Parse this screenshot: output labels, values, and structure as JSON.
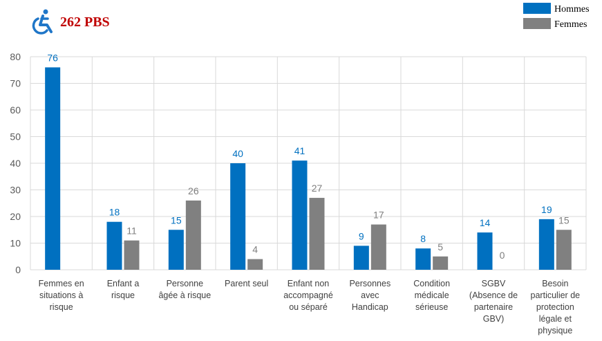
{
  "header": {
    "title": "262 PBS",
    "icon": "wheelchair-icon",
    "title_color": "#c00000",
    "icon_color": "#1f76c8"
  },
  "legend_position": "top-right",
  "chart_data": {
    "type": "bar",
    "categories": [
      [
        "Femmes en",
        "situations à",
        "risque"
      ],
      [
        "Enfant a",
        "risque"
      ],
      [
        "Personne",
        "âgée à risque"
      ],
      [
        "Parent seul"
      ],
      [
        "Enfant non",
        "accompagné",
        "ou séparé"
      ],
      [
        "Personnes",
        "avec",
        "Handicap"
      ],
      [
        "Condition",
        "médicale",
        "sérieuse"
      ],
      [
        "SGBV",
        "(Absence de",
        "partenaire",
        "GBV)"
      ],
      [
        "Besoin",
        "particulier de",
        "protection",
        "légale et",
        "physique"
      ]
    ],
    "series": [
      {
        "name": "Hommes",
        "color": "#0070c0",
        "values": [
          76,
          18,
          15,
          40,
          41,
          9,
          8,
          14,
          19
        ]
      },
      {
        "name": "Femmes",
        "color": "#808080",
        "values": [
          null,
          11,
          26,
          4,
          27,
          17,
          5,
          0,
          15
        ]
      }
    ],
    "ylim": [
      0,
      80
    ],
    "yticks": [
      0,
      10,
      20,
      30,
      40,
      50,
      60,
      70,
      80
    ],
    "grid": true
  }
}
